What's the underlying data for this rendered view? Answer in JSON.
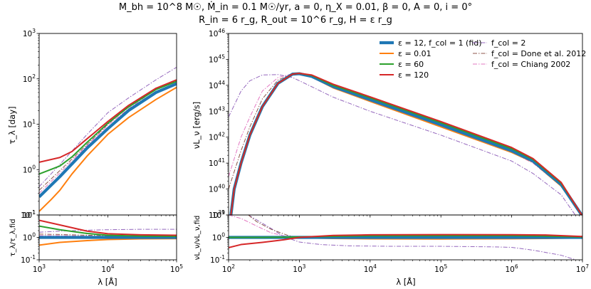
{
  "figure_title": {
    "line1": "M_bh = 10^8 M☉, Ṁ_in = 0.1 M☉/yr, a = 0, η_X = 0.01, β = 0, A = 0, i = 0°",
    "line2": "R_in = 6 r_g, R_out = 10^6 r_g, H = ε r_g"
  },
  "legend": {
    "col1": [
      {
        "label": "ε = 12, f_col = 1 (fid)",
        "color": "#1f77b4",
        "style": "solid-thick"
      },
      {
        "label": "ε = 0.01",
        "color": "#ff7f0e",
        "style": "solid"
      },
      {
        "label": "ε = 60",
        "color": "#2ca02c",
        "style": "solid"
      },
      {
        "label": "ε = 120",
        "color": "#d62728",
        "style": "solid"
      }
    ],
    "col2": [
      {
        "label": "f_col = 2",
        "color": "#9467bd",
        "style": "dashdot"
      },
      {
        "label": "f_col = Done et al.  2012",
        "color": "#8c564b",
        "style": "dashdot"
      },
      {
        "label": "f_col = Chiang 2002",
        "color": "#e377c2",
        "style": "dashdot"
      }
    ]
  },
  "chart_data": [
    {
      "panel": "lag",
      "type": "line",
      "xlabel": "λ [Å]",
      "ylabel": "τ_λ [day]",
      "xscale": "log",
      "yscale": "log",
      "xlim": [
        1000,
        100000
      ],
      "ylim": [
        0.1,
        1000
      ],
      "yticks": [
        "10^-1",
        "10^0",
        "10^1",
        "10^2",
        "10^3"
      ],
      "series": [
        {
          "name": "fid",
          "x": [
            1000,
            2000,
            5000,
            10000,
            20000,
            50000,
            100000
          ],
          "y": [
            0.25,
            0.7,
            3.0,
            8.0,
            20,
            50,
            78
          ]
        },
        {
          "name": "eps0.01",
          "x": [
            1000,
            1500,
            2000,
            3000,
            5000,
            10000,
            20000,
            50000,
            100000
          ],
          "y": [
            0.12,
            0.22,
            0.35,
            0.8,
            2.0,
            6.0,
            14,
            35,
            65
          ]
        },
        {
          "name": "eps60",
          "x": [
            1000,
            2000,
            3000,
            5000,
            10000,
            20000,
            50000,
            100000
          ],
          "y": [
            0.8,
            1.2,
            1.9,
            4.0,
            10.5,
            24,
            58,
            88
          ]
        },
        {
          "name": "eps120",
          "x": [
            1000,
            2000,
            3000,
            5000,
            10000,
            20000,
            50000,
            100000
          ],
          "y": [
            1.45,
            1.85,
            2.5,
            4.8,
            11.5,
            26,
            62,
            95
          ]
        },
        {
          "name": "fcol2",
          "x": [
            1000,
            2000,
            5000,
            10000,
            20000,
            50000,
            100000
          ],
          "y": [
            0.42,
            1.3,
            6.0,
            18,
            38,
            95,
            180
          ]
        },
        {
          "name": "done",
          "x": [
            1000,
            2000,
            5000,
            10000,
            20000,
            50000,
            100000
          ],
          "y": [
            0.35,
            0.95,
            3.6,
            10,
            24,
            62,
            88
          ]
        },
        {
          "name": "chiang",
          "x": [
            1000,
            2000,
            5000,
            10000,
            20000,
            50000,
            100000
          ],
          "y": [
            0.3,
            0.85,
            3.4,
            9.5,
            22,
            58,
            85
          ]
        }
      ]
    },
    {
      "panel": "lag_ratio",
      "type": "line",
      "ylabel": "τ_λ/τ_λ,fid",
      "xscale": "log",
      "yscale": "log",
      "xlim": [
        1000,
        100000
      ],
      "ylim": [
        0.1,
        10
      ],
      "yticks": [
        "10^-1",
        "10^0",
        "10^1"
      ],
      "xticks": [
        "10^3",
        "10^4",
        "10^5"
      ],
      "series": [
        {
          "name": "fid",
          "x": [
            1000,
            100000
          ],
          "y": [
            1,
            1
          ]
        },
        {
          "name": "eps0.01",
          "x": [
            1000,
            2000,
            5000,
            10000,
            30000,
            100000
          ],
          "y": [
            0.45,
            0.6,
            0.72,
            0.8,
            0.86,
            0.88
          ]
        },
        {
          "name": "eps60",
          "x": [
            1000,
            2000,
            5000,
            10000,
            30000,
            100000
          ],
          "y": [
            3.2,
            2.2,
            1.5,
            1.25,
            1.15,
            1.12
          ]
        },
        {
          "name": "eps120",
          "x": [
            1000,
            2000,
            5000,
            10000,
            30000,
            100000
          ],
          "y": [
            5.8,
            3.6,
            1.9,
            1.45,
            1.3,
            1.25
          ]
        },
        {
          "name": "fcol2",
          "x": [
            1000,
            2000,
            5000,
            10000,
            30000,
            100000
          ],
          "y": [
            1.7,
            1.9,
            2.1,
            2.2,
            2.3,
            2.3
          ]
        },
        {
          "name": "done",
          "x": [
            1000,
            2000,
            5000,
            10000,
            30000,
            100000
          ],
          "y": [
            1.4,
            1.35,
            1.25,
            1.2,
            1.15,
            1.13
          ]
        },
        {
          "name": "chiang",
          "x": [
            1000,
            2000,
            5000,
            10000,
            30000,
            100000
          ],
          "y": [
            1.2,
            1.2,
            1.15,
            1.12,
            1.1,
            1.1
          ]
        }
      ]
    },
    {
      "panel": "sed",
      "type": "line",
      "ylabel": "νL_ν [erg/s]",
      "xscale": "log",
      "yscale": "log",
      "xlim": [
        100,
        10000000
      ],
      "ylim": [
        1e+39,
        1e+46
      ],
      "yticks": [
        "10^39",
        "10^40",
        "10^41",
        "10^42",
        "10^43",
        "10^44",
        "10^45",
        "10^46"
      ],
      "series": [
        {
          "name": "fid",
          "x": [
            108,
            120,
            150,
            200,
            300,
            500,
            800,
            1000,
            1500,
            3000,
            10000,
            100000,
            1000000,
            2000000,
            5000000,
            10000000
          ],
          "y": [
            1e+39,
            1e+40,
            1e+41,
            1.2e+42,
            1.5e+43,
            1.2e+44,
            2.7e+44,
            2.8e+44,
            2.2e+44,
            9e+43,
            2.8e+43,
            3e+42,
            3e+41,
            1.2e+41,
            1.5e+40,
            9e+38
          ]
        },
        {
          "name": "eps0.01",
          "x": [
            108,
            120,
            150,
            200,
            300,
            500,
            800,
            1000,
            1500,
            3000,
            10000,
            100000,
            1000000,
            2000000,
            5000000,
            10000000
          ],
          "y": [
            1e+39,
            1e+40,
            1e+41,
            1.2e+42,
            1.5e+43,
            1.2e+44,
            2.6e+44,
            2.7e+44,
            2.1e+44,
            8e+43,
            2.4e+43,
            2.5e+42,
            2.6e+41,
            1.1e+41,
            1.3e+40,
            9e+38
          ]
        },
        {
          "name": "eps60",
          "x": [
            108,
            120,
            150,
            200,
            300,
            500,
            800,
            1000,
            1500,
            3000,
            10000,
            100000,
            1000000,
            2000000,
            5000000,
            10000000
          ],
          "y": [
            1e+39,
            1e+40,
            1e+41,
            1.2e+42,
            1.5e+43,
            1.2e+44,
            2.7e+44,
            2.9e+44,
            2.4e+44,
            1e+44,
            3.3e+43,
            3.6e+42,
            3.6e+41,
            1.4e+41,
            1.7e+40,
            9e+38
          ]
        },
        {
          "name": "eps120",
          "x": [
            108,
            120,
            150,
            200,
            300,
            500,
            800,
            1000,
            1500,
            3000,
            10000,
            100000,
            1000000,
            2000000,
            5000000,
            10000000
          ],
          "y": [
            1e+39,
            1e+40,
            1e+41,
            1.2e+42,
            1.5e+43,
            1.2e+44,
            2.7e+44,
            2.9e+44,
            2.5e+44,
            1.1e+44,
            3.6e+43,
            4e+42,
            4e+41,
            1.5e+41,
            1.8e+40,
            9e+38
          ]
        },
        {
          "name": "fcol2",
          "x": [
            100,
            150,
            200,
            300,
            500,
            800,
            1000,
            3000,
            10000,
            100000,
            1000000,
            2000000,
            5000000,
            10000000
          ],
          "y": [
            6e+42,
            6e+43,
            1.5e+44,
            2.5e+44,
            2.6e+44,
            2e+44,
            1.5e+44,
            3.5e+43,
            1e+43,
            1.2e+42,
            1.2e+41,
            4e+40,
            6e+39,
            4e+38
          ]
        },
        {
          "name": "done",
          "x": [
            100,
            150,
            200,
            300,
            500,
            800,
            1000,
            1500,
            3000,
            10000,
            100000,
            1000000,
            2000000,
            5000000,
            10000000
          ],
          "y": [
            1e+40,
            3e+41,
            2.5e+42,
            3e+43,
            1.6e+44,
            2.8e+44,
            2.8e+44,
            2.1e+44,
            8.5e+43,
            2.6e+43,
            2.7e+42,
            2.8e+41,
            1.1e+41,
            1.4e+40,
            9e+38
          ]
        },
        {
          "name": "chiang",
          "x": [
            100,
            150,
            200,
            300,
            500,
            800,
            1000,
            1500,
            3000,
            10000,
            100000,
            1000000,
            2000000,
            5000000,
            10000000
          ],
          "y": [
            3e+40,
            1e+42,
            6e+42,
            6e+43,
            2e+44,
            2.8e+44,
            2.7e+44,
            2e+44,
            8e+43,
            2.4e+43,
            2.5e+42,
            2.6e+41,
            1e+41,
            1.3e+40,
            9e+38
          ]
        }
      ]
    },
    {
      "panel": "sed_ratio",
      "type": "line",
      "ylabel": "νL_ν/νL_ν,fid",
      "xlabel": "λ [Å]",
      "xscale": "log",
      "yscale": "log",
      "xlim": [
        100,
        10000000
      ],
      "ylim": [
        0.1,
        10
      ],
      "yticks": [
        "10^-1",
        "10^0",
        "10^1"
      ],
      "xticks": [
        "10^2",
        "10^3",
        "10^4",
        "10^5",
        "10^6",
        "10^7"
      ],
      "series": [
        {
          "name": "fid",
          "x": [
            100,
            10000000
          ],
          "y": [
            1,
            1
          ]
        },
        {
          "name": "eps0.01",
          "x": [
            100,
            300,
            1000,
            3000,
            10000,
            100000,
            1000000,
            3000000,
            10000000
          ],
          "y": [
            1,
            1,
            0.96,
            0.9,
            0.86,
            0.85,
            0.87,
            0.9,
            0.95
          ]
        },
        {
          "name": "eps60",
          "x": [
            100,
            300,
            1000,
            3000,
            10000,
            100000,
            1000000,
            3000000,
            10000000
          ],
          "y": [
            1,
            1,
            1.04,
            1.12,
            1.18,
            1.2,
            1.2,
            1.15,
            1.05
          ]
        },
        {
          "name": "eps120",
          "x": [
            100,
            150,
            300,
            600,
            1000,
            3000,
            10000,
            100000,
            1000000,
            3000000,
            10000000
          ],
          "y": [
            0.35,
            0.48,
            0.6,
            0.78,
            1.0,
            1.22,
            1.3,
            1.33,
            1.32,
            1.28,
            1.1
          ]
        },
        {
          "name": "fcol2",
          "x": [
            190,
            250,
            400,
            600,
            1000,
            2000,
            5000,
            20000,
            100000,
            500000,
            1000000,
            2000000,
            5000000,
            10000000
          ],
          "y": [
            10,
            6,
            2.5,
            1.1,
            0.62,
            0.48,
            0.42,
            0.4,
            0.4,
            0.38,
            0.36,
            0.27,
            0.16,
            0.08
          ]
        },
        {
          "name": "done",
          "x": [
            190,
            250,
            400,
            700,
            1000,
            2000,
            10000,
            100000,
            1000000,
            10000000
          ],
          "y": [
            10,
            5,
            2.3,
            1.2,
            1.0,
            0.97,
            0.97,
            0.98,
            0.99,
            1.0
          ]
        },
        {
          "name": "chiang",
          "x": [
            100,
            150,
            250,
            400,
            700,
            1000,
            2000,
            10000,
            100000,
            1000000,
            10000000
          ],
          "y": [
            10,
            7,
            3.2,
            1.6,
            1.05,
            0.97,
            0.96,
            0.95,
            0.96,
            0.97,
            1.0
          ]
        }
      ]
    }
  ]
}
